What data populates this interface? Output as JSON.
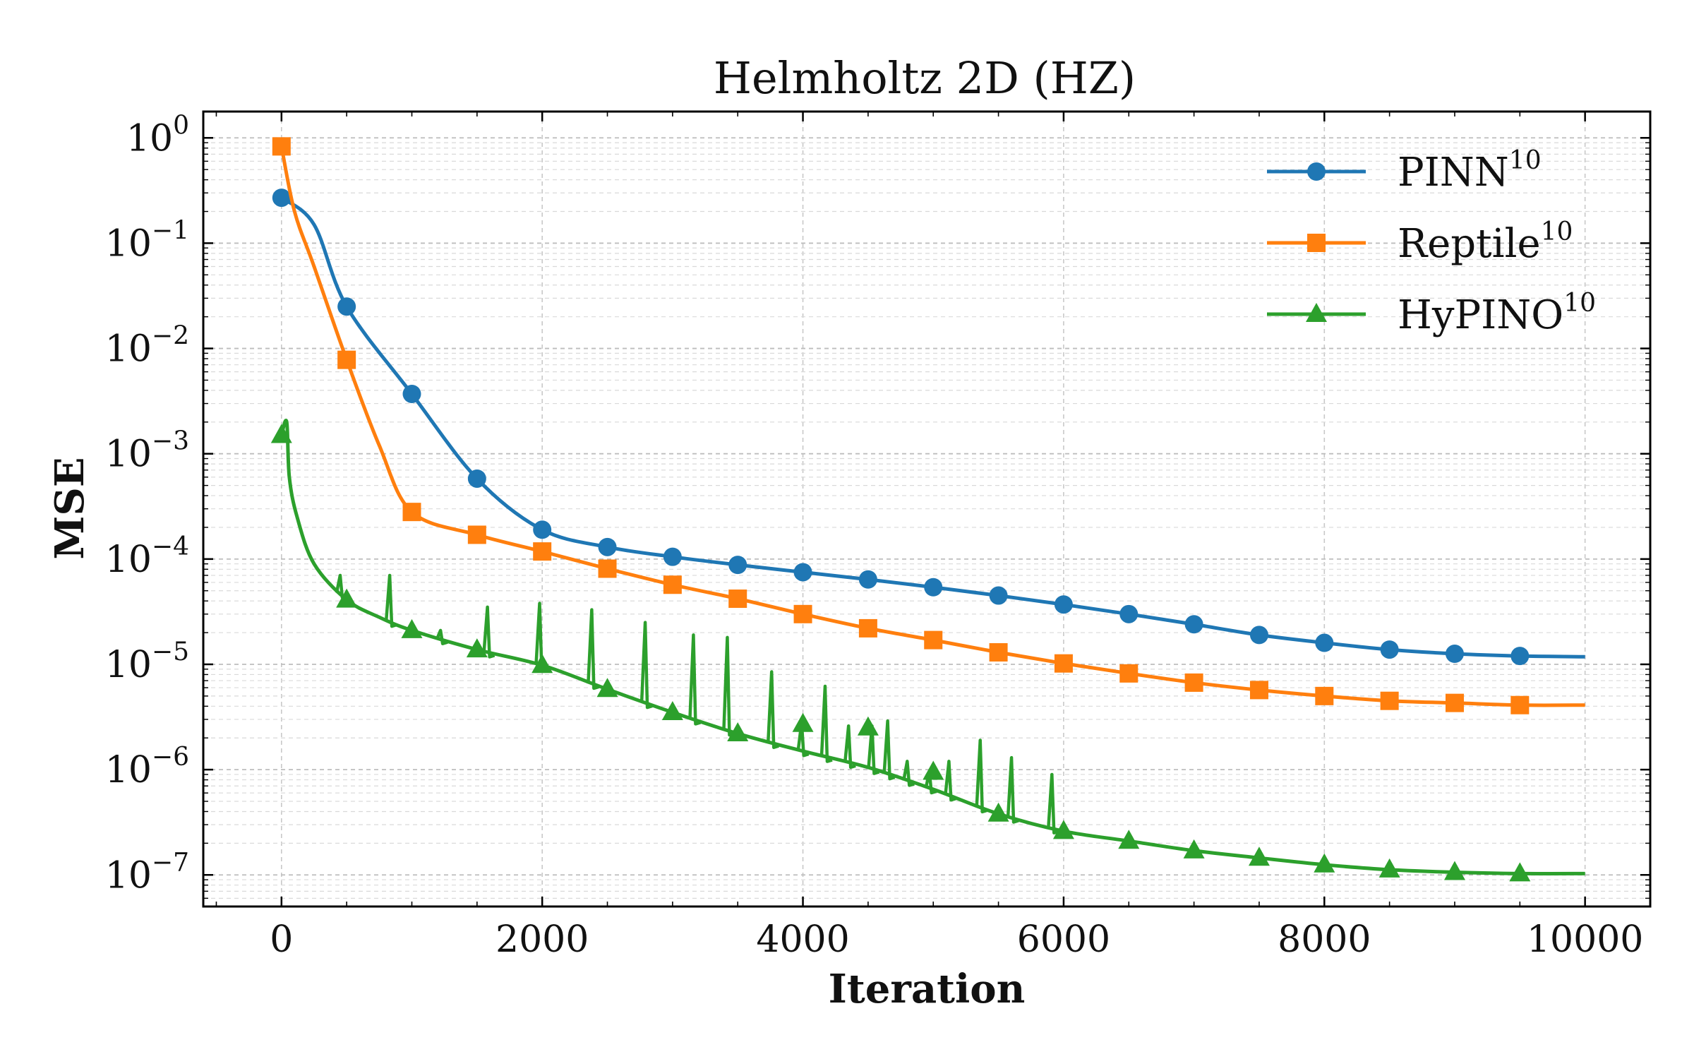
{
  "chart_data": {
    "type": "line",
    "title": "Helmholtz 2D (HZ)",
    "xlabel": "Iteration",
    "ylabel": "MSE",
    "yscale": "log",
    "xlim": [
      -600,
      10500
    ],
    "ylim_exp": [
      -7.3,
      0.25
    ],
    "grid": true,
    "legend_position": "top-right",
    "x_ticks": [
      0,
      2000,
      4000,
      6000,
      8000,
      10000
    ],
    "x_tick_labels": [
      "0",
      "2000",
      "4000",
      "6000",
      "8000",
      "10000"
    ],
    "y_ticks_exp": [
      0,
      -1,
      -2,
      -3,
      -4,
      -5,
      -6,
      -7
    ],
    "y_tick_base": "10",
    "y_tick_exponents": [
      "0",
      "−1",
      "−2",
      "−3",
      "−4",
      "−5",
      "−6",
      "−7"
    ],
    "series": [
      {
        "name": "PINN",
        "name_sup": "10",
        "color": "#1f77b4",
        "marker": "circle",
        "x": [
          0,
          250,
          500,
          1000,
          1500,
          2000,
          2500,
          3000,
          3500,
          4000,
          4500,
          5000,
          5500,
          6000,
          6500,
          7000,
          7500,
          8000,
          8500,
          9000,
          9500,
          10000
        ],
        "values": [
          0.27,
          0.15,
          0.025,
          0.0037,
          0.00058,
          0.00019,
          0.00013,
          0.000105,
          8.8e-05,
          7.5e-05,
          6.4e-05,
          5.4e-05,
          4.5e-05,
          3.7e-05,
          3e-05,
          2.4e-05,
          1.9e-05,
          1.6e-05,
          1.38e-05,
          1.26e-05,
          1.2e-05,
          1.18e-05
        ],
        "marker_x": [
          0,
          500,
          1000,
          1500,
          2000,
          2500,
          3000,
          3500,
          4000,
          4500,
          5000,
          5500,
          6000,
          6500,
          7000,
          7500,
          8000,
          8500,
          9000,
          9500
        ]
      },
      {
        "name": "Reptile",
        "name_sup": "10",
        "color": "#ff7f0e",
        "marker": "square",
        "x": [
          0,
          100,
          250,
          500,
          750,
          1000,
          1500,
          2000,
          2500,
          3000,
          3500,
          4000,
          4500,
          5000,
          5500,
          6000,
          6500,
          7000,
          7500,
          8000,
          8500,
          9000,
          9500,
          10000
        ],
        "values": [
          0.83,
          0.2,
          0.06,
          0.0078,
          0.0012,
          0.00028,
          0.00017,
          0.000118,
          8.1e-05,
          5.7e-05,
          4.2e-05,
          3e-05,
          2.2e-05,
          1.7e-05,
          1.3e-05,
          1.02e-05,
          8.2e-06,
          6.7e-06,
          5.7e-06,
          5e-06,
          4.5e-06,
          4.3e-06,
          4.1e-06,
          4.1e-06
        ],
        "marker_x": [
          0,
          500,
          1000,
          1500,
          2000,
          2500,
          3000,
          3500,
          4000,
          4500,
          5000,
          5500,
          6000,
          6500,
          7000,
          7500,
          8000,
          8500,
          9000,
          9500
        ]
      },
      {
        "name": "HyPINO",
        "name_sup": "10",
        "color": "#2ca02c",
        "marker": "triangle",
        "x": [
          0,
          40,
          60,
          120,
          250,
          500,
          750,
          1000,
          1500,
          2000,
          2500,
          3000,
          3500,
          4000,
          4500,
          5000,
          5500,
          6000,
          6500,
          7000,
          7500,
          8000,
          8500,
          9000,
          9500,
          10000
        ],
        "values": [
          0.0015,
          0.002,
          0.0006,
          0.00025,
          9e-05,
          4.1e-05,
          2.8e-05,
          2.1e-05,
          1.38e-05,
          9.8e-06,
          5.8e-06,
          3.5e-06,
          2.2e-06,
          1.5e-06,
          1.05e-06,
          6.5e-07,
          3.8e-07,
          2.6e-07,
          2.1e-07,
          1.7e-07,
          1.45e-07,
          1.25e-07,
          1.12e-07,
          1.06e-07,
          1.03e-07,
          1.03e-07
        ],
        "marker_x": [
          0,
          500,
          1000,
          1500,
          2000,
          2500,
          3000,
          3500,
          4000,
          4500,
          5000,
          5500,
          6000,
          6500,
          7000,
          7500,
          8000,
          8500,
          9000,
          9500
        ],
        "marker_values": [
          0.0015,
          4.1e-05,
          2.1e-05,
          1.38e-05,
          9.8e-06,
          5.8e-06,
          3.5e-06,
          2.2e-06,
          2.7e-06,
          2.5e-06,
          9.5e-07,
          3.8e-07,
          2.6e-07,
          2.1e-07,
          1.7e-07,
          1.45e-07,
          1.25e-07,
          1.12e-07,
          1.06e-07,
          1.03e-07
        ],
        "spikes": [
          {
            "x": 450,
            "peak": 7e-05
          },
          {
            "x": 830,
            "peak": 7e-05
          },
          {
            "x": 1220,
            "peak": 2.1e-05
          },
          {
            "x": 1580,
            "peak": 3.5e-05
          },
          {
            "x": 1980,
            "peak": 3.8e-05
          },
          {
            "x": 2380,
            "peak": 3.3e-05
          },
          {
            "x": 2790,
            "peak": 2.5e-05
          },
          {
            "x": 3160,
            "peak": 1.9e-05
          },
          {
            "x": 3420,
            "peak": 1.8e-05
          },
          {
            "x": 3760,
            "peak": 8.5e-06
          },
          {
            "x": 3990,
            "peak": 2.8e-06
          },
          {
            "x": 4170,
            "peak": 6.2e-06
          },
          {
            "x": 4350,
            "peak": 2.6e-06
          },
          {
            "x": 4530,
            "peak": 2.6e-06
          },
          {
            "x": 4650,
            "peak": 2.9e-06
          },
          {
            "x": 4800,
            "peak": 1.2e-06
          },
          {
            "x": 4970,
            "peak": 9.5e-07
          },
          {
            "x": 5120,
            "peak": 1.2e-06
          },
          {
            "x": 5360,
            "peak": 1.9e-06
          },
          {
            "x": 5600,
            "peak": 1.3e-06
          },
          {
            "x": 5910,
            "peak": 9e-07
          }
        ]
      }
    ]
  }
}
